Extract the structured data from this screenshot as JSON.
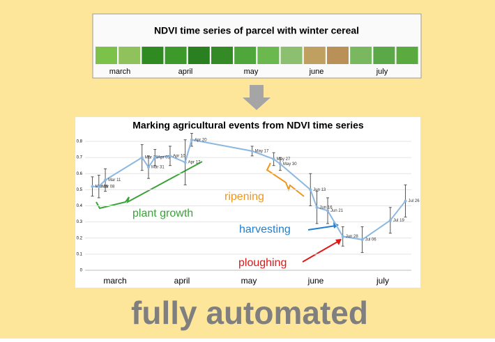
{
  "top_panel": {
    "title": "NDVI time series of parcel with winter cereal",
    "months": [
      "march",
      "april",
      "may",
      "june",
      "july"
    ]
  },
  "chart_data": {
    "type": "line",
    "title": "Marking agricultural events from NDVI time series",
    "categories": [
      "march",
      "april",
      "may",
      "june",
      "july"
    ],
    "x": [
      "Mar 05",
      "Mar 08",
      "Mar 11",
      "Mar 28",
      "Mar 31",
      "Apr 03",
      "Apr 10",
      "Apr 17",
      "Apr 20",
      "May 17",
      "May 27",
      "May 30",
      "Jun 13",
      "Jun 16",
      "Jun 21",
      "Jun 28",
      "Jul 06",
      "Jul 19",
      "Jul 26"
    ],
    "series": [
      {
        "color": "#8ab8e2",
        "values": [
          0.52,
          0.52,
          0.56,
          0.7,
          0.64,
          0.7,
          0.71,
          0.67,
          0.81,
          0.74,
          0.69,
          0.66,
          0.5,
          0.39,
          0.37,
          0.21,
          0.19,
          0.31,
          0.43
        ],
        "errors": [
          0.06,
          0.07,
          0.07,
          0.08,
          0.07,
          0.05,
          0.06,
          0.14,
          0.04,
          0.03,
          0.04,
          0.04,
          0.1,
          0.1,
          0.08,
          0.06,
          0.08,
          0.08,
          0.1
        ]
      }
    ],
    "ylim": [
      0,
      0.8
    ],
    "yticks": [
      0,
      0.1,
      0.2,
      0.3,
      0.4,
      0.5,
      0.6,
      0.7,
      0.8
    ],
    "grid": true,
    "annotations": [
      {
        "text": "plant growth",
        "color": "#3aa23a"
      },
      {
        "text": "ripening",
        "color": "#f0961e"
      },
      {
        "text": "harvesting",
        "color": "#1f7fd0"
      },
      {
        "text": "ploughing",
        "color": "#e01818"
      }
    ]
  },
  "footer": "fully automated"
}
